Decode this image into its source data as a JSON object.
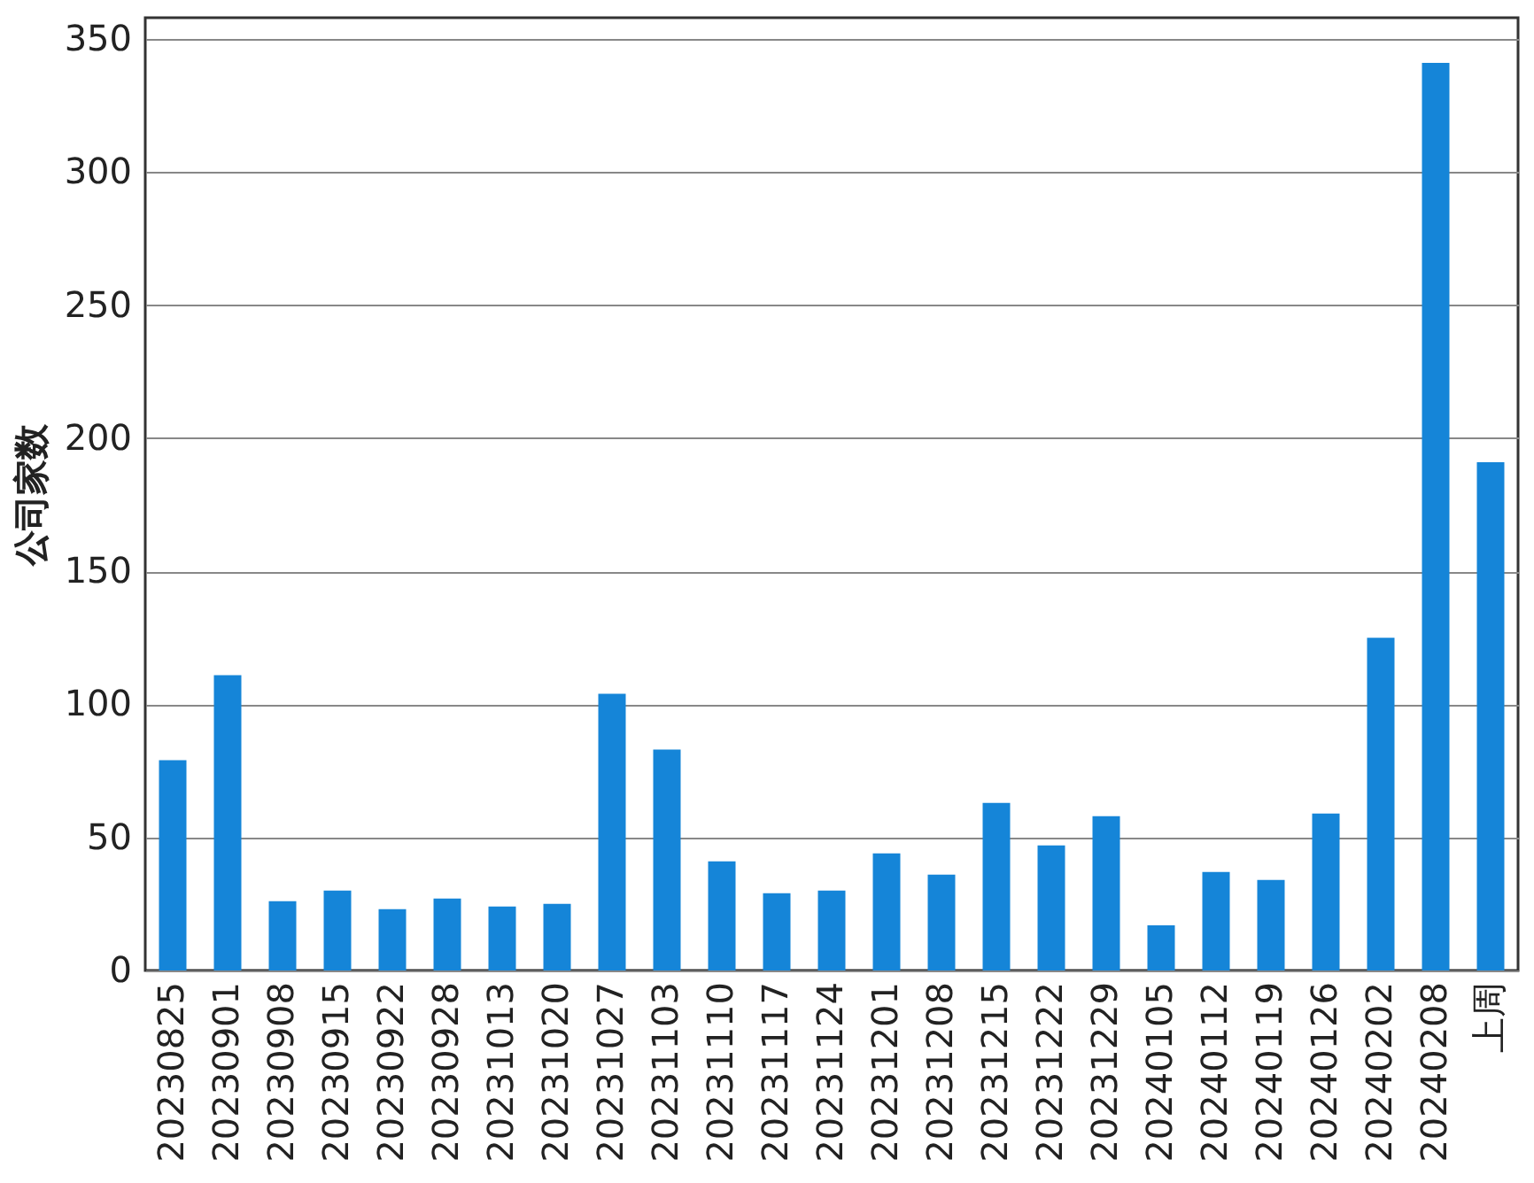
{
  "chart_data": {
    "type": "bar",
    "ylabel": "公司家数",
    "categories": [
      "20230825",
      "20230901",
      "20230908",
      "20230915",
      "20230922",
      "20230928",
      "20231013",
      "20231020",
      "20231027",
      "20231103",
      "20231110",
      "20231117",
      "20231124",
      "20231201",
      "20231208",
      "20231215",
      "20231222",
      "20231229",
      "20240105",
      "20240112",
      "20240119",
      "20240126",
      "20240202",
      "20240208",
      "上周"
    ],
    "values": [
      79,
      111,
      26,
      30,
      23,
      27,
      24,
      25,
      104,
      83,
      41,
      29,
      30,
      44,
      36,
      63,
      47,
      58,
      17,
      37,
      34,
      59,
      125,
      341,
      191
    ],
    "color": "#1585d8",
    "ylim": [
      0,
      358
    ],
    "yticks": [
      0,
      50,
      100,
      150,
      200,
      250,
      300,
      350
    ],
    "grid": "y"
  }
}
